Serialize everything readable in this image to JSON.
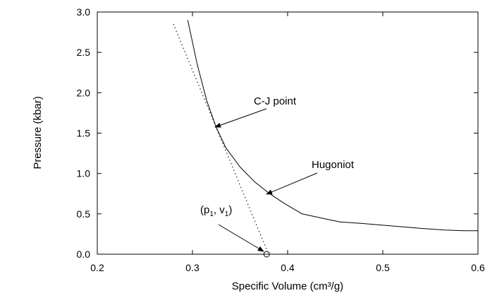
{
  "chart_data": {
    "type": "line",
    "xlabel": "Specific Volume (cm³/g)",
    "ylabel": "Pressure (kbar)",
    "xlim": [
      0.2,
      0.6
    ],
    "ylim": [
      0.0,
      3.0
    ],
    "x_ticks": [
      "0.2",
      "0.3",
      "0.4",
      "0.5",
      "0.6"
    ],
    "y_ticks": [
      "0.0",
      "0.5",
      "1.0",
      "1.5",
      "2.0",
      "2.5",
      "3.0"
    ],
    "grid": false,
    "series": [
      {
        "style": "solid",
        "x": [
          0.295,
          0.305,
          0.315,
          0.325,
          0.335,
          0.35,
          0.365,
          0.38,
          0.395,
          0.415,
          0.435,
          0.455,
          0.48,
          0.51,
          0.54,
          0.565,
          0.585,
          0.6
        ],
        "y": [
          2.9,
          2.35,
          1.9,
          1.57,
          1.32,
          1.08,
          0.9,
          0.76,
          0.64,
          0.5,
          0.45,
          0.4,
          0.38,
          0.35,
          0.32,
          0.3,
          0.29,
          0.29
        ]
      },
      {
        "style": "dotted",
        "x": [
          0.28,
          0.38
        ],
        "y": [
          2.85,
          0.0
        ]
      }
    ],
    "annotations": [
      {
        "text": "C-J point",
        "arrow_to": [
          0.325,
          1.56
        ]
      },
      {
        "text": "Hugoniot",
        "arrow_to": [
          0.385,
          0.73
        ]
      },
      {
        "text_parts": [
          "(p",
          "1",
          ", v",
          "1",
          ")"
        ],
        "arrow_to": [
          0.378,
          0.0
        ]
      }
    ],
    "markers": [
      {
        "shape": "open-circle",
        "x": 0.378,
        "y": 0.0
      }
    ]
  }
}
